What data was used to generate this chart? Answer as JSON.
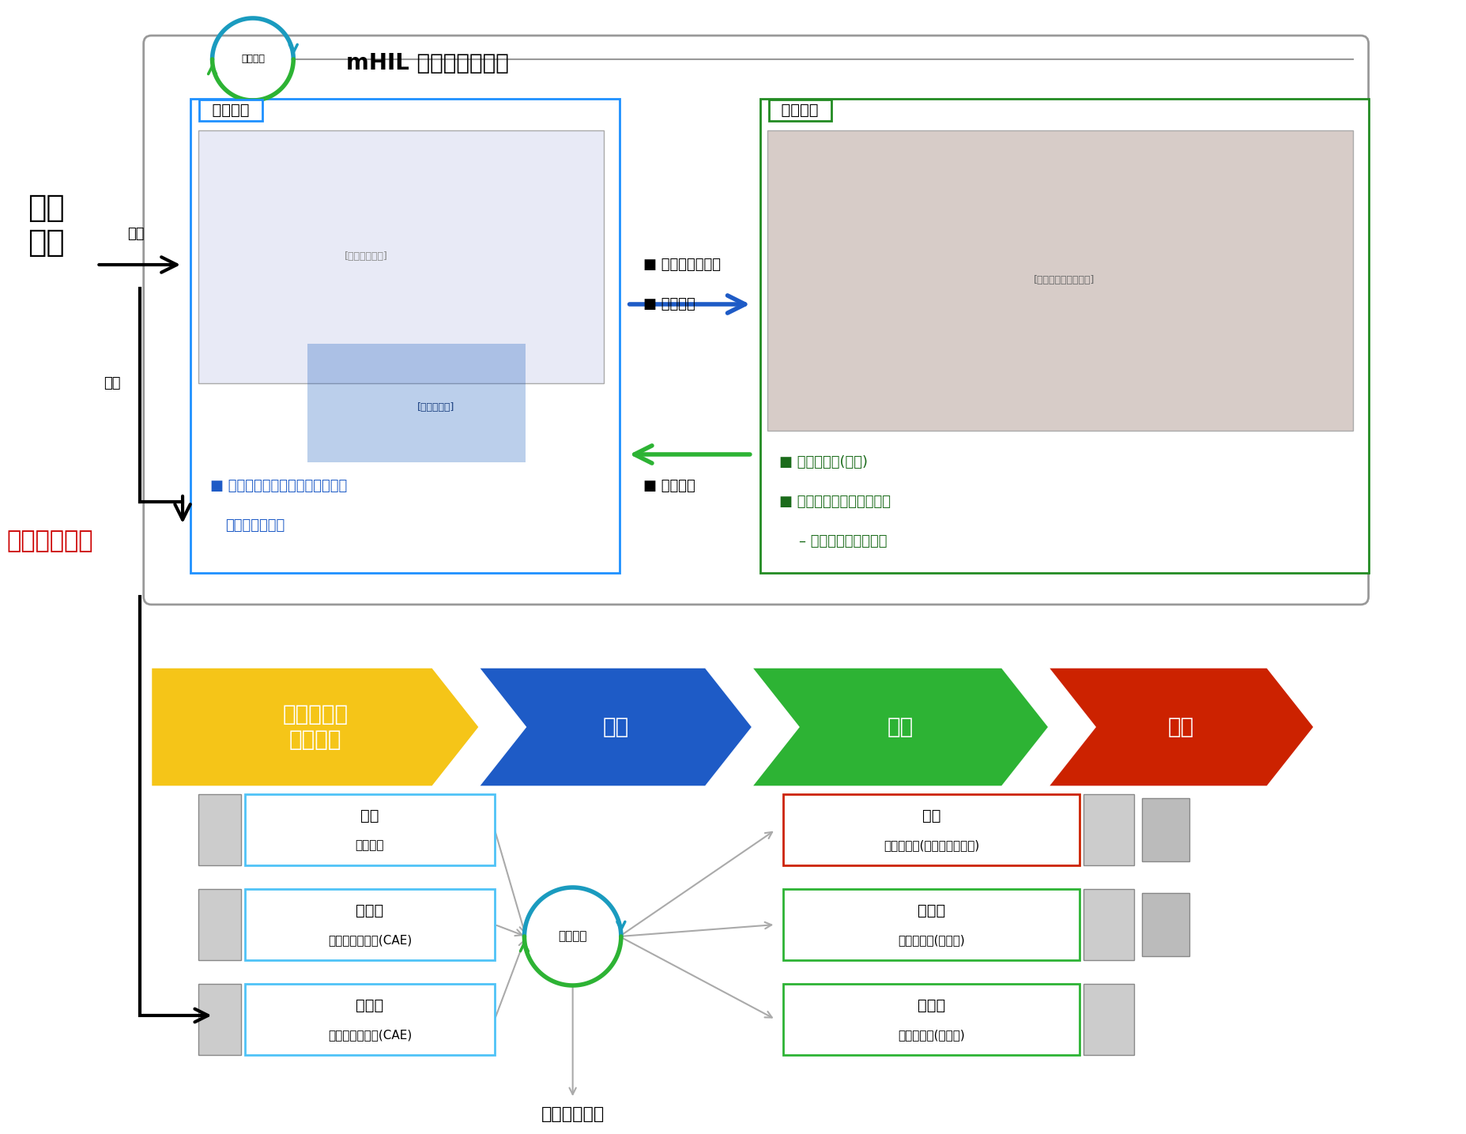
{
  "title": "mHIL 减震器测试系统",
  "bg_color": "#ffffff",
  "top_box_color": "#cccccc",
  "left_label_1": "操控\n路面",
  "left_label_2": "车辆动态响应",
  "input_label": "输入",
  "output_label": "输出",
  "comp_sim_title": "计算仿真",
  "phys_test_title": "物理测试",
  "comp_sim_border": "#1e90ff",
  "phys_test_border": "#228b22",
  "right_to_center_labels": [
    "垂向减震器位移",
    "支柱弯矩"
  ],
  "center_to_left_label": "垂向载荷",
  "comp_sim_bullet1": "整车仿真模型，接收真实减震器",
  "comp_sim_bullet2": "和板簧动态输入",
  "phys_test_bullet1": "减震器支柱(整车)",
  "phys_test_bullet2": "四套减震器加载测试系统",
  "phys_test_bullet3": "– 电液伺服或电磁激励",
  "arrow_colors_proc": [
    "#f5c518",
    "#1e5bc6",
    "#2db334",
    "#cc2200"
  ],
  "proc_labels": [
    "市场需求与\n研发目标",
    "设计",
    "测试",
    "验证"
  ],
  "bottom_left_boxes": [
    {
      "title": "整车",
      "sub": "研发目标",
      "border": "#4fc3f7"
    },
    {
      "title": "子系统",
      "sub": "研发目标与设计(CAE)",
      "border": "#4fc3f7"
    },
    {
      "title": "零部件",
      "sub": "研发目标与设计(CAE)",
      "border": "#4fc3f7"
    }
  ],
  "bottom_right_boxes": [
    {
      "title": "整车",
      "sub": "测试与验证(试验室与试车场)",
      "border": "#cc2200"
    },
    {
      "title": "子系统",
      "sub": "测试与验证(试验室)",
      "border": "#2db334"
    },
    {
      "title": "零部件",
      "sub": "测试与验证(试验室)",
      "border": "#2db334"
    }
  ],
  "bottom_center_label": "混合仿真",
  "optimize_label": "优化产品设计",
  "hybrid_sim_color_top": "#1a9bbf",
  "hybrid_sim_color_bottom": "#2db334"
}
